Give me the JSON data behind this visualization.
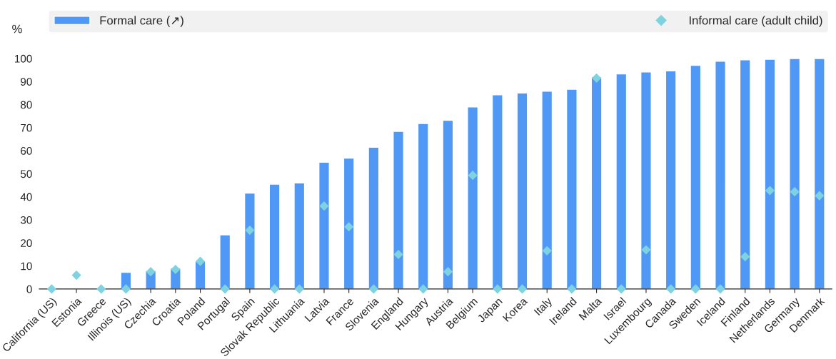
{
  "chart_data": {
    "type": "bar",
    "ylabel": "%",
    "categories": [
      "California (US)",
      "Estonia",
      "Greece",
      "Illinois (US)",
      "Czechia",
      "Croatia",
      "Poland",
      "Portugal",
      "Spain",
      "Slovak Republic",
      "Lithuania",
      "Latvia",
      "France",
      "Slovenia",
      "England",
      "Hungary",
      "Austria",
      "Belgium",
      "Japan",
      "Korea",
      "Italy",
      "Ireland",
      "Malta",
      "Israel",
      "Luxembourg",
      "Canada",
      "Sweden",
      "Iceland",
      "Finland",
      "Netherlands",
      "Germany",
      "Denmark"
    ],
    "series": [
      {
        "name": "Formal care (↗)",
        "color": "#4f98f5",
        "values": [
          null,
          null,
          null,
          7.2,
          8,
          9,
          12,
          23.5,
          41.6,
          45.5,
          46,
          55,
          56.8,
          61.5,
          68.4,
          71.8,
          73.2,
          79,
          84.3,
          85,
          85.8,
          86.7,
          92,
          93.3,
          94.2,
          94.6,
          97,
          98.8,
          99.4,
          99.7,
          100,
          100
        ]
      },
      {
        "name": "Informal care (adult child)",
        "type": "scatter",
        "marker": "diamond",
        "color": "#7fd3e0",
        "values": [
          0,
          6,
          0,
          0,
          7.5,
          8.5,
          12,
          0,
          25.5,
          0,
          0,
          36,
          27,
          0,
          15,
          0,
          7.5,
          49.3,
          0,
          0,
          16.6,
          0,
          91.5,
          0,
          17,
          0,
          0,
          0,
          14,
          42.7,
          42.2,
          40.5
        ]
      }
    ],
    "ylim": [
      0,
      100
    ],
    "yticks": [
      0,
      10,
      20,
      30,
      40,
      50,
      60,
      70,
      80,
      90,
      100
    ],
    "grid": false,
    "legend": "top"
  }
}
